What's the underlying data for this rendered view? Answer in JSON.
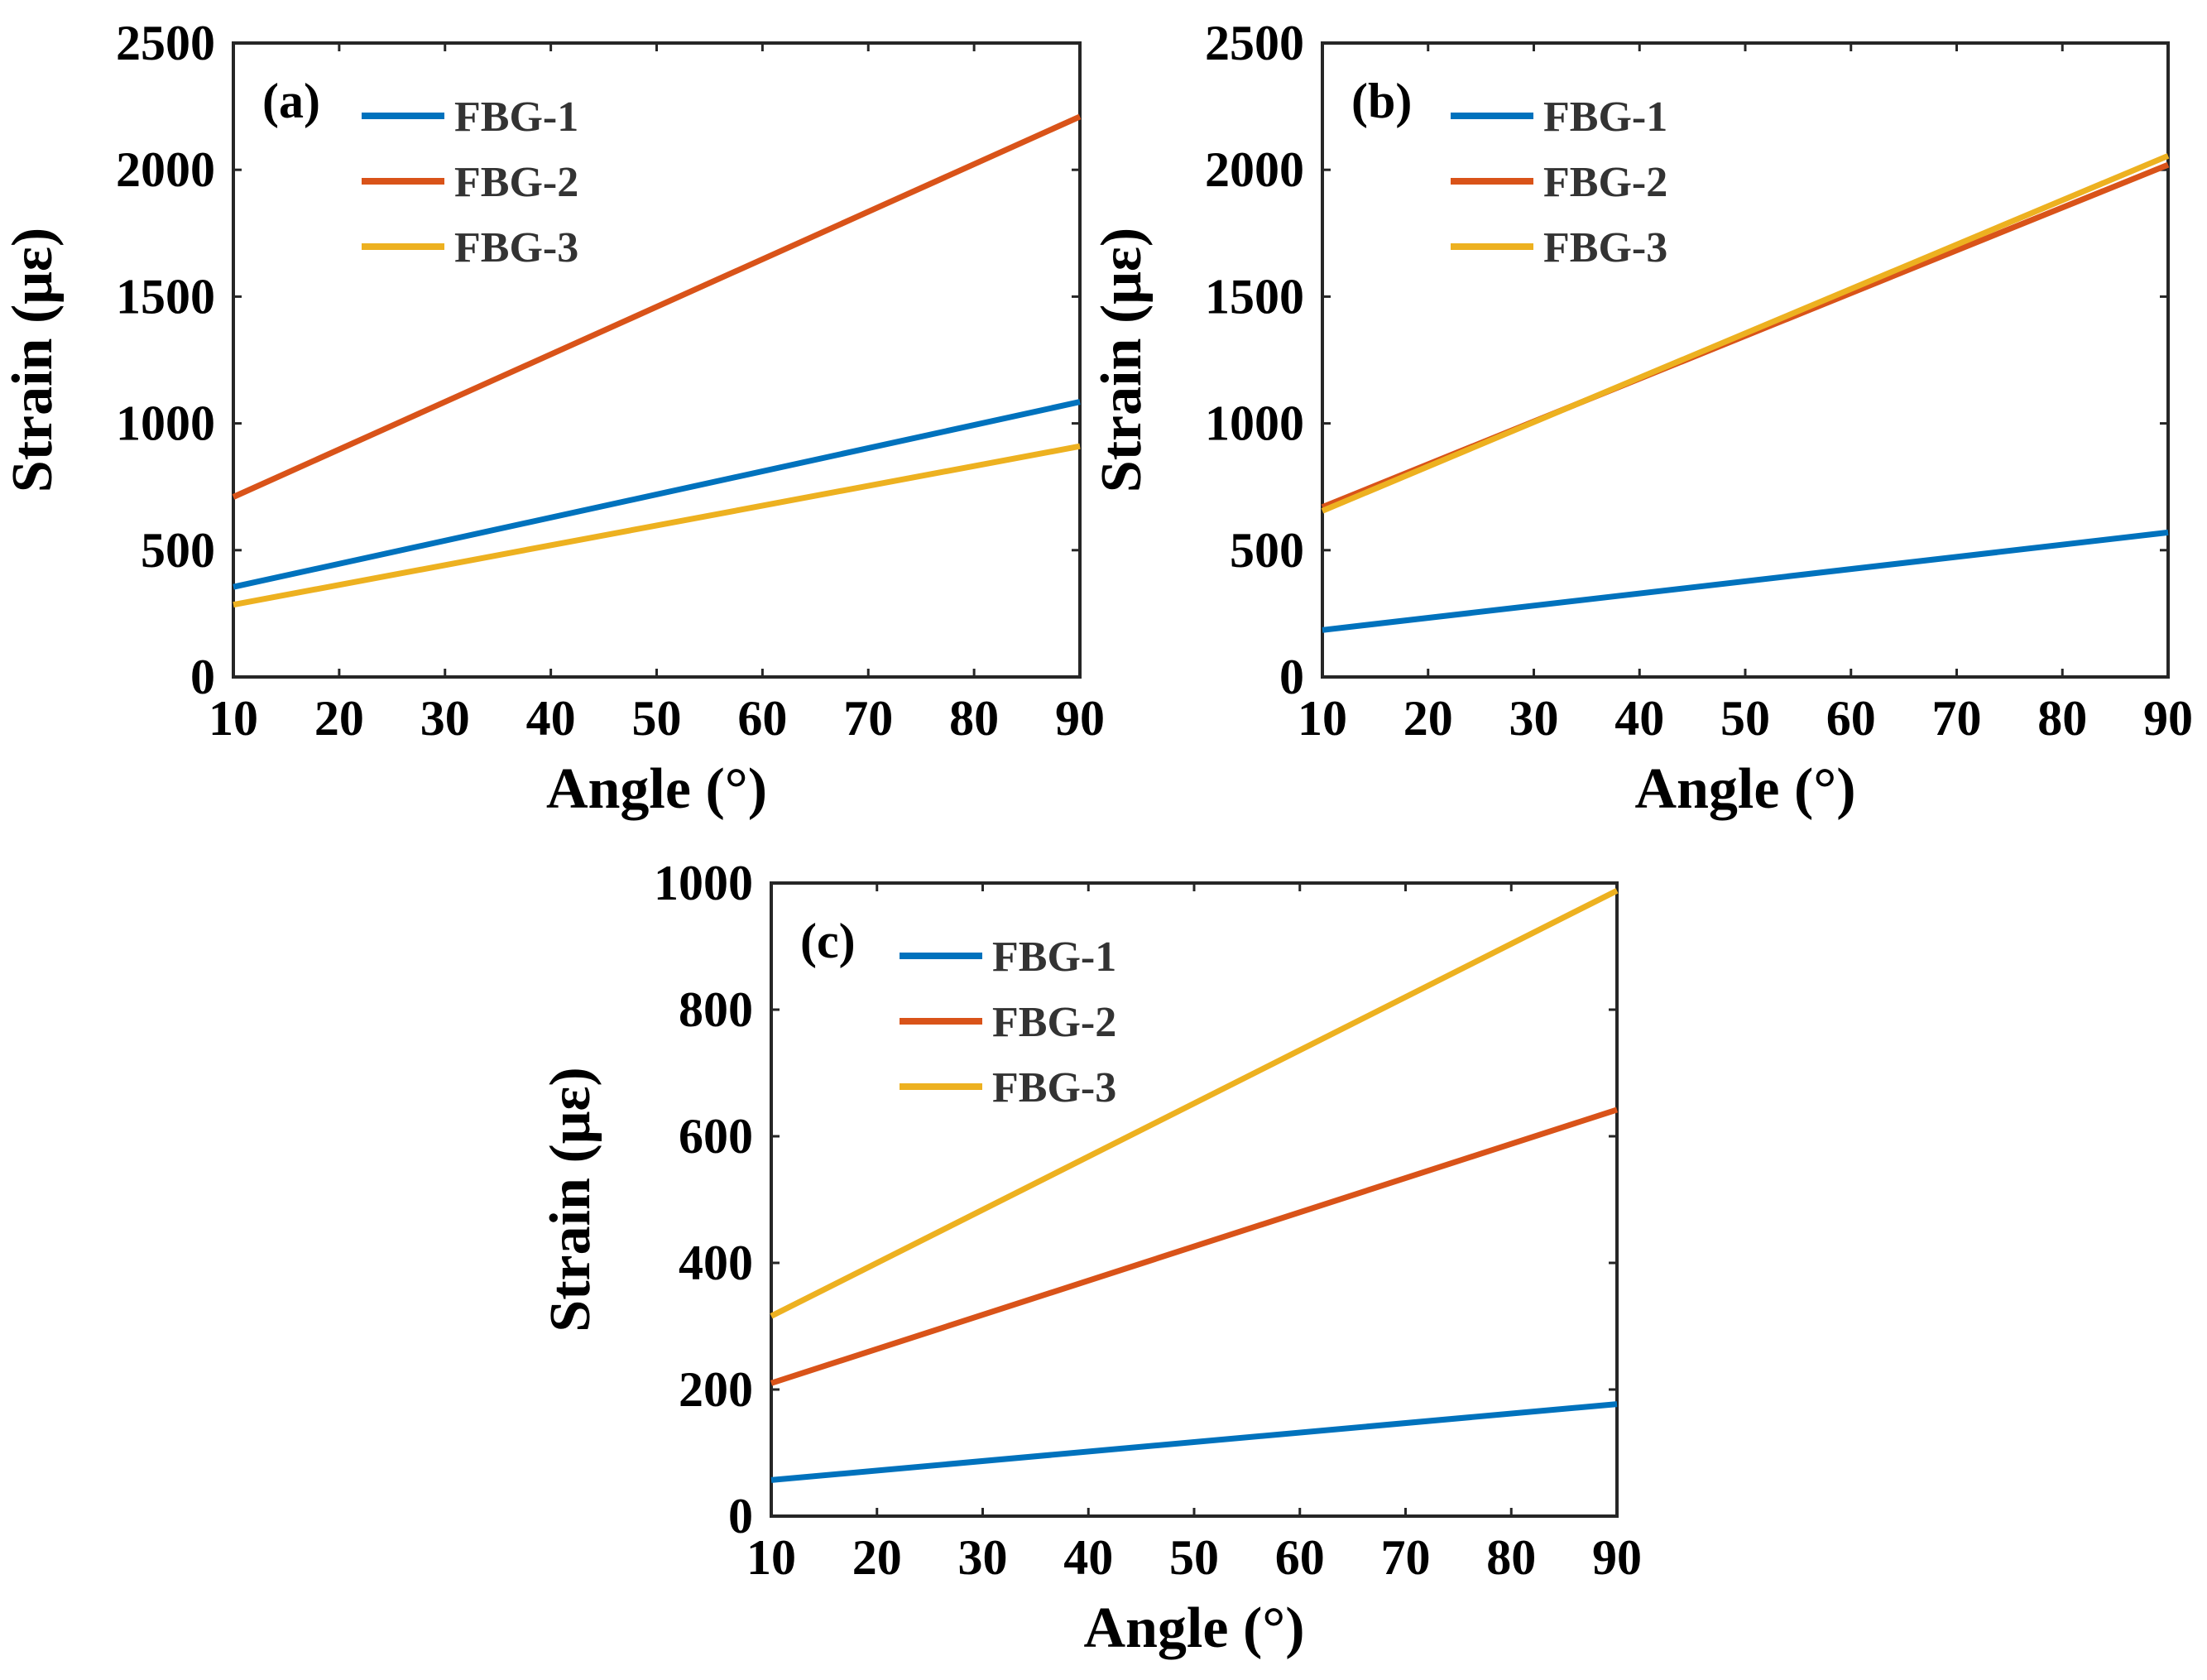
{
  "chart_data": [
    {
      "type": "line",
      "panel_label": "(a)",
      "xlabel": "Angle (°)",
      "ylabel": "Strain (με)",
      "xlim": [
        10,
        90
      ],
      "ylim": [
        0,
        2500
      ],
      "xticks": [
        "10",
        "20",
        "30",
        "40",
        "50",
        "60",
        "70",
        "80",
        "90"
      ],
      "yticks": [
        "0",
        "500",
        "1000",
        "1500",
        "2000",
        "2500"
      ],
      "grid": false,
      "legend_position": "top-left",
      "x": [
        10,
        90
      ],
      "series": [
        {
          "name": "FBG-1",
          "color": "#0072BD",
          "values": [
            355,
            1085
          ]
        },
        {
          "name": "FBG-2",
          "color": "#D95319",
          "values": [
            710,
            2210
          ]
        },
        {
          "name": "FBG-3",
          "color": "#EDB120",
          "values": [
            285,
            910
          ]
        }
      ]
    },
    {
      "type": "line",
      "panel_label": "(b)",
      "xlabel": "Angle (°)",
      "ylabel": "Strain (με)",
      "xlim": [
        10,
        90
      ],
      "ylim": [
        0,
        2500
      ],
      "xticks": [
        "10",
        "20",
        "30",
        "40",
        "50",
        "60",
        "70",
        "80",
        "90"
      ],
      "yticks": [
        "0",
        "500",
        "1000",
        "1500",
        "2000",
        "2500"
      ],
      "grid": false,
      "legend_position": "top-left",
      "x": [
        10,
        90
      ],
      "series": [
        {
          "name": "FBG-1",
          "color": "#0072BD",
          "values": [
            185,
            570
          ]
        },
        {
          "name": "FBG-2",
          "color": "#D95319",
          "values": [
            670,
            2020
          ]
        },
        {
          "name": "FBG-3",
          "color": "#EDB120",
          "values": [
            655,
            2055
          ]
        }
      ]
    },
    {
      "type": "line",
      "panel_label": "(c)",
      "xlabel": "Angle (°)",
      "ylabel": "Strain (με)",
      "xlim": [
        10,
        90
      ],
      "ylim": [
        0,
        1000
      ],
      "xticks": [
        "10",
        "20",
        "30",
        "40",
        "50",
        "60",
        "70",
        "80",
        "90"
      ],
      "yticks": [
        "0",
        "200",
        "400",
        "600",
        "800",
        "1000"
      ],
      "grid": false,
      "legend_position": "top-left",
      "x": [
        10,
        90
      ],
      "series": [
        {
          "name": "FBG-1",
          "color": "#0072BD",
          "values": [
            57,
            177
          ]
        },
        {
          "name": "FBG-2",
          "color": "#D95319",
          "values": [
            210,
            642
          ]
        },
        {
          "name": "FBG-3",
          "color": "#EDB120",
          "values": [
            316,
            988
          ]
        }
      ]
    }
  ]
}
